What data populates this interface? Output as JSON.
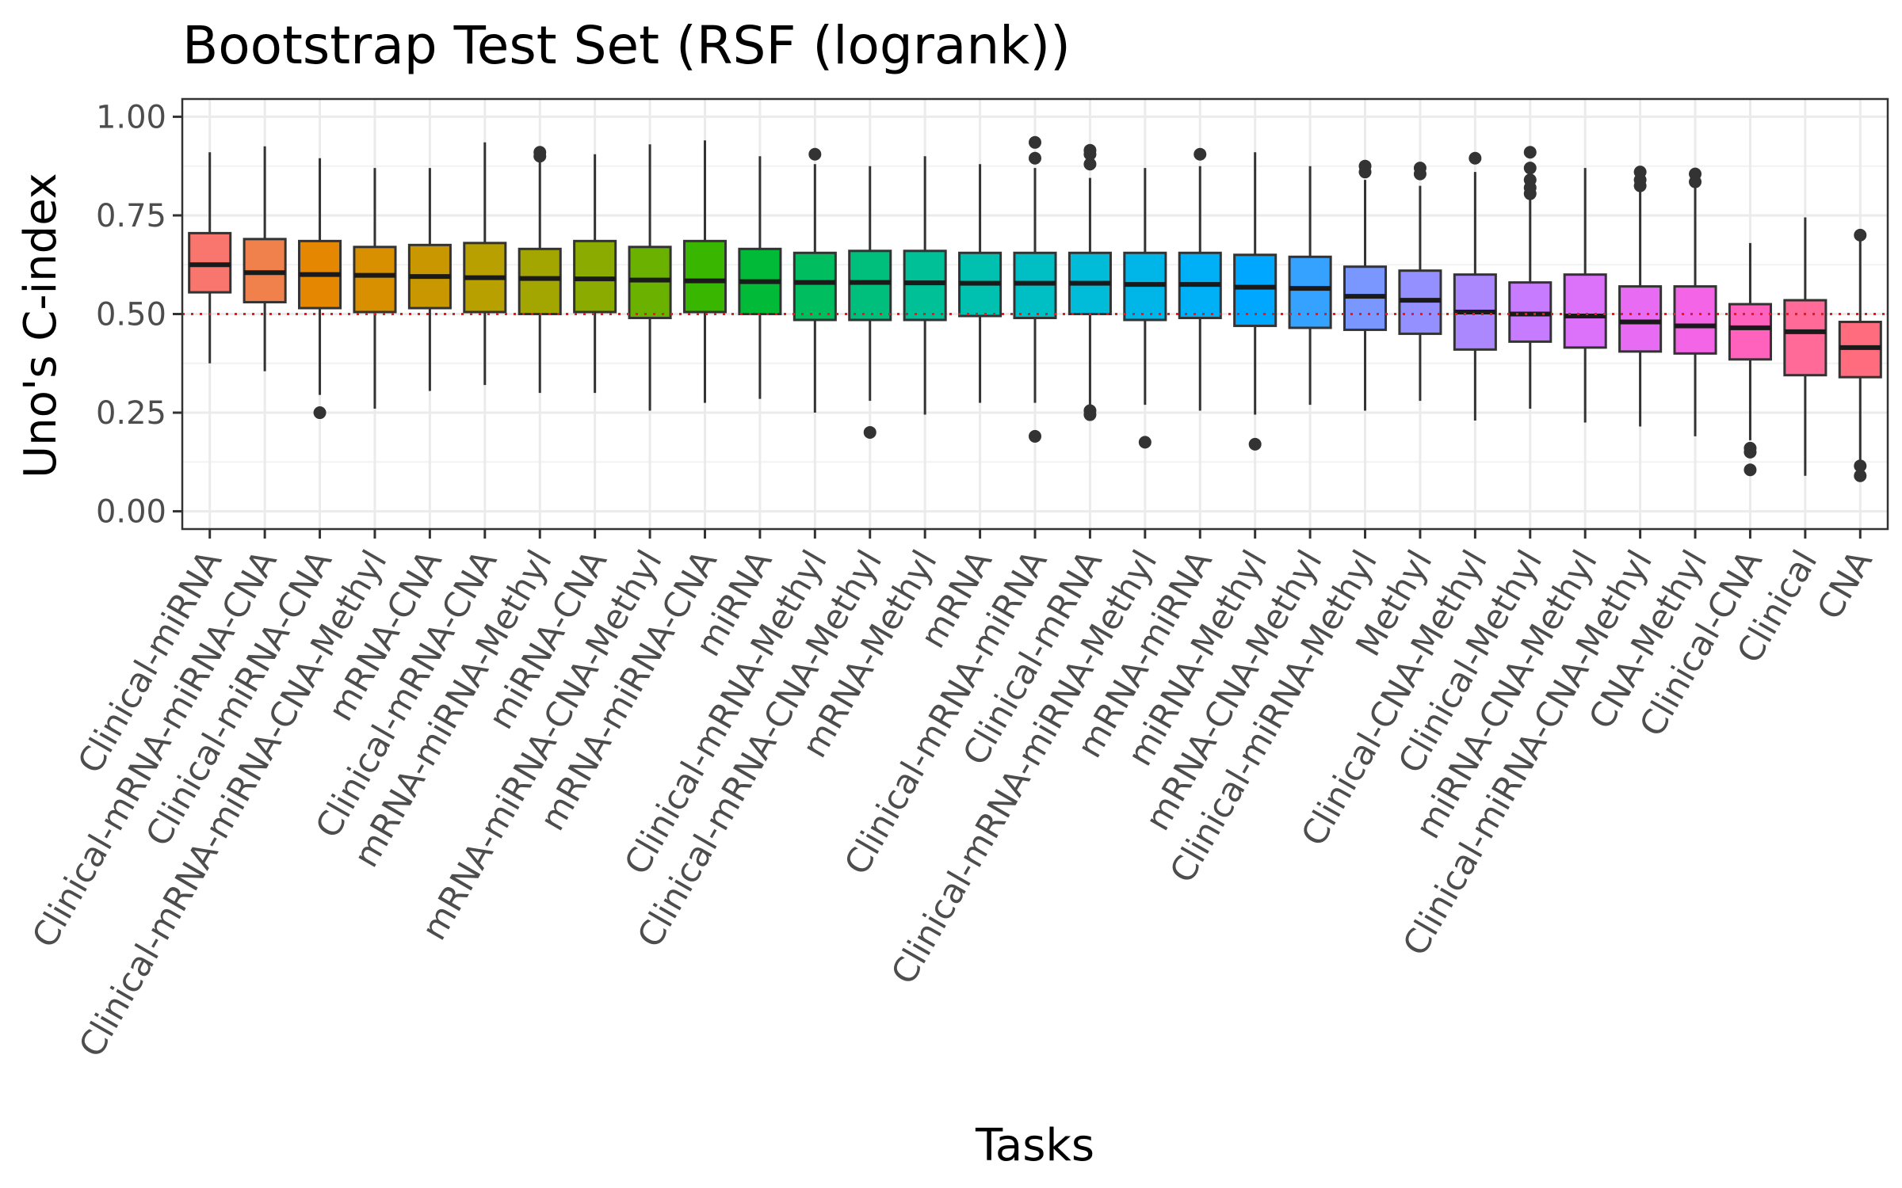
{
  "chart_data": {
    "type": "boxplot",
    "title": "Bootstrap Test Set (RSF (logrank))",
    "xlabel": "Tasks",
    "ylabel": "Uno's C-index",
    "ylim": [
      -0.045,
      1.045
    ],
    "y_ticks": [
      0.0,
      0.25,
      0.5,
      0.75,
      1.0
    ],
    "y_tick_labels": [
      "0.00",
      "0.25",
      "0.50",
      "0.75",
      "1.00"
    ],
    "reference_line": 0.5,
    "reference_line_color": "#e41a1c",
    "grid": true,
    "legend": "none",
    "categories": [
      "Clinical-miRNA",
      "Clinical-mRNA-miRNA-CNA",
      "Clinical-miRNA-CNA",
      "Clinical-mRNA-miRNA-CNA-Methyl",
      "mRNA-CNA",
      "Clinical-mRNA-CNA",
      "mRNA-miRNA-Methyl",
      "miRNA-CNA",
      "mRNA-miRNA-CNA-Methyl",
      "mRNA-miRNA-CNA",
      "miRNA",
      "Clinical-mRNA-Methyl",
      "Clinical-mRNA-CNA-Methyl",
      "mRNA-Methyl",
      "mRNA",
      "Clinical-mRNA-miRNA",
      "Clinical-mRNA",
      "Clinical-mRNA-miRNA-Methyl",
      "mRNA-miRNA",
      "miRNA-Methyl",
      "mRNA-CNA-Methyl",
      "Clinical-miRNA-Methyl",
      "Methyl",
      "Clinical-CNA-Methyl",
      "Clinical-Methyl",
      "miRNA-CNA-Methyl",
      "Clinical-miRNA-CNA-Methyl",
      "CNA-Methyl",
      "Clinical-CNA",
      "Clinical",
      "CNA"
    ],
    "boxes": [
      {
        "q1": 0.555,
        "median": 0.625,
        "q3": 0.705,
        "whisker_low": 0.375,
        "whisker_high": 0.91,
        "outliers": [],
        "color": "#F8766D"
      },
      {
        "q1": 0.53,
        "median": 0.605,
        "q3": 0.69,
        "whisker_low": 0.355,
        "whisker_high": 0.925,
        "outliers": [],
        "color": "#F0804C"
      },
      {
        "q1": 0.515,
        "median": 0.6,
        "q3": 0.685,
        "whisker_low": 0.295,
        "whisker_high": 0.895,
        "outliers": [
          0.25
        ],
        "color": "#E58700"
      },
      {
        "q1": 0.505,
        "median": 0.598,
        "q3": 0.67,
        "whisker_low": 0.26,
        "whisker_high": 0.87,
        "outliers": [],
        "color": "#D89000"
      },
      {
        "q1": 0.515,
        "median": 0.595,
        "q3": 0.675,
        "whisker_low": 0.305,
        "whisker_high": 0.87,
        "outliers": [],
        "color": "#C99800"
      },
      {
        "q1": 0.505,
        "median": 0.592,
        "q3": 0.68,
        "whisker_low": 0.32,
        "whisker_high": 0.935,
        "outliers": [],
        "color": "#B8A000"
      },
      {
        "q1": 0.5,
        "median": 0.59,
        "q3": 0.665,
        "whisker_low": 0.3,
        "whisker_high": 0.9,
        "outliers": [
          0.9,
          0.91
        ],
        "color": "#A3A500"
      },
      {
        "q1": 0.505,
        "median": 0.589,
        "q3": 0.685,
        "whisker_low": 0.3,
        "whisker_high": 0.905,
        "outliers": [],
        "color": "#8BAB00"
      },
      {
        "q1": 0.49,
        "median": 0.586,
        "q3": 0.67,
        "whisker_low": 0.255,
        "whisker_high": 0.93,
        "outliers": [],
        "color": "#6BB100"
      },
      {
        "q1": 0.505,
        "median": 0.584,
        "q3": 0.685,
        "whisker_low": 0.275,
        "whisker_high": 0.94,
        "outliers": [],
        "color": "#39B600"
      },
      {
        "q1": 0.5,
        "median": 0.582,
        "q3": 0.665,
        "whisker_low": 0.285,
        "whisker_high": 0.9,
        "outliers": [],
        "color": "#00BA38"
      },
      {
        "q1": 0.485,
        "median": 0.58,
        "q3": 0.655,
        "whisker_low": 0.25,
        "whisker_high": 0.88,
        "outliers": [
          0.905
        ],
        "color": "#00BD5F"
      },
      {
        "q1": 0.485,
        "median": 0.58,
        "q3": 0.66,
        "whisker_low": 0.28,
        "whisker_high": 0.875,
        "outliers": [
          0.2
        ],
        "color": "#00BF7D"
      },
      {
        "q1": 0.485,
        "median": 0.579,
        "q3": 0.66,
        "whisker_low": 0.245,
        "whisker_high": 0.9,
        "outliers": [],
        "color": "#00C097"
      },
      {
        "q1": 0.495,
        "median": 0.578,
        "q3": 0.655,
        "whisker_low": 0.275,
        "whisker_high": 0.88,
        "outliers": [],
        "color": "#00C0AF"
      },
      {
        "q1": 0.49,
        "median": 0.578,
        "q3": 0.655,
        "whisker_low": 0.275,
        "whisker_high": 0.87,
        "outliers": [
          0.19,
          0.895,
          0.935
        ],
        "color": "#00BFC4"
      },
      {
        "q1": 0.5,
        "median": 0.578,
        "q3": 0.655,
        "whisker_low": 0.265,
        "whisker_high": 0.845,
        "outliers": [
          0.245,
          0.255,
          0.88,
          0.905,
          0.915
        ],
        "color": "#00BCD8"
      },
      {
        "q1": 0.485,
        "median": 0.575,
        "q3": 0.655,
        "whisker_low": 0.27,
        "whisker_high": 0.87,
        "outliers": [
          0.175
        ],
        "color": "#00B6E9"
      },
      {
        "q1": 0.49,
        "median": 0.575,
        "q3": 0.655,
        "whisker_low": 0.255,
        "whisker_high": 0.875,
        "outliers": [
          0.905
        ],
        "color": "#00B0F6"
      },
      {
        "q1": 0.47,
        "median": 0.568,
        "q3": 0.65,
        "whisker_low": 0.245,
        "whisker_high": 0.91,
        "outliers": [
          0.17
        ],
        "color": "#00A7FF"
      },
      {
        "q1": 0.465,
        "median": 0.565,
        "q3": 0.645,
        "whisker_low": 0.27,
        "whisker_high": 0.875,
        "outliers": [],
        "color": "#35A2FF"
      },
      {
        "q1": 0.46,
        "median": 0.545,
        "q3": 0.62,
        "whisker_low": 0.255,
        "whisker_high": 0.84,
        "outliers": [
          0.86,
          0.875
        ],
        "color": "#7997FF"
      },
      {
        "q1": 0.45,
        "median": 0.535,
        "q3": 0.61,
        "whisker_low": 0.28,
        "whisker_high": 0.825,
        "outliers": [
          0.855,
          0.87
        ],
        "color": "#9590FF"
      },
      {
        "q1": 0.41,
        "median": 0.505,
        "q3": 0.6,
        "whisker_low": 0.23,
        "whisker_high": 0.86,
        "outliers": [
          0.895
        ],
        "color": "#AC88FF"
      },
      {
        "q1": 0.43,
        "median": 0.5,
        "q3": 0.58,
        "whisker_low": 0.26,
        "whisker_high": 0.795,
        "outliers": [
          0.805,
          0.82,
          0.84,
          0.87,
          0.91
        ],
        "color": "#C77CFF"
      },
      {
        "q1": 0.415,
        "median": 0.495,
        "q3": 0.6,
        "whisker_low": 0.225,
        "whisker_high": 0.87,
        "outliers": [],
        "color": "#DC71FA"
      },
      {
        "q1": 0.405,
        "median": 0.48,
        "q3": 0.57,
        "whisker_low": 0.215,
        "whisker_high": 0.815,
        "outliers": [
          0.825,
          0.84,
          0.86
        ],
        "color": "#E76BF3"
      },
      {
        "q1": 0.4,
        "median": 0.47,
        "q3": 0.57,
        "whisker_low": 0.19,
        "whisker_high": 0.825,
        "outliers": [
          0.835,
          0.855
        ],
        "color": "#F365E6"
      },
      {
        "q1": 0.385,
        "median": 0.465,
        "q3": 0.525,
        "whisker_low": 0.18,
        "whisker_high": 0.68,
        "outliers": [
          0.105,
          0.15,
          0.16
        ],
        "color": "#FF62BC"
      },
      {
        "q1": 0.345,
        "median": 0.455,
        "q3": 0.535,
        "whisker_low": 0.09,
        "whisker_high": 0.745,
        "outliers": [],
        "color": "#FF6A98"
      },
      {
        "q1": 0.34,
        "median": 0.415,
        "q3": 0.48,
        "whisker_low": 0.12,
        "whisker_high": 0.69,
        "outliers": [
          0.09,
          0.115,
          0.7
        ],
        "color": "#FF6C7E"
      }
    ]
  }
}
